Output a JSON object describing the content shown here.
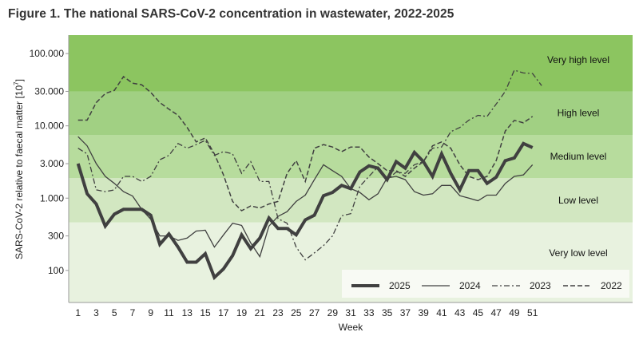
{
  "title": "Figure 1. The national SARS-CoV-2 concentration in wastewater, 2022-2025",
  "chart_data": {
    "type": "line",
    "title": "Figure 1. The national SARS-CoV-2 concentration in wastewater, 2022-2025",
    "xlabel": "Week",
    "ylabel": "SARS-CoV-2 relative to faecal matter  [10",
    "ylabel_sup": "7",
    "ylabel_end": "]",
    "yscale": "log",
    "ylim": [
      36,
      180000
    ],
    "xlim": [
      0,
      63
    ],
    "yticks": [
      100000,
      30000,
      10000,
      3000,
      1000,
      300,
      100
    ],
    "ytick_labels": [
      "100.000",
      "30.000",
      "10.000",
      "3.000",
      "1.000",
      "300",
      "100"
    ],
    "xticks": [
      1,
      3,
      5,
      7,
      9,
      11,
      13,
      15,
      17,
      19,
      21,
      23,
      25,
      27,
      29,
      31,
      33,
      35,
      37,
      39,
      41,
      43,
      45,
      47,
      49,
      51
    ],
    "grid": false,
    "legend_position": "bottom-right",
    "levels": [
      {
        "label": "Very high level",
        "lower": 30000,
        "upper": 180000,
        "color": "#8cc560"
      },
      {
        "label": "High level",
        "lower": 7500,
        "upper": 30000,
        "color": "#a1d083"
      },
      {
        "label": "Medium level",
        "lower": 1900,
        "upper": 7500,
        "color": "#b7dc9d"
      },
      {
        "label": "Low level",
        "lower": 460,
        "upper": 1900,
        "color": "#d2e7c1"
      },
      {
        "label": "Very low level",
        "lower": 36,
        "upper": 460,
        "color": "#e8f2df"
      }
    ],
    "series": [
      {
        "name": "2025",
        "style": "thick",
        "start_week": 1,
        "values": [
          3000,
          1150,
          830,
          410,
          600,
          700,
          700,
          700,
          580,
          230,
          320,
          210,
          130,
          130,
          170,
          80,
          105,
          160,
          310,
          200,
          280,
          530,
          380,
          380,
          310,
          500,
          580,
          1080,
          1200,
          1500,
          1350,
          2300,
          2800,
          2600,
          1800,
          3200,
          2600,
          4300,
          3200,
          2000,
          4100,
          2200,
          1300,
          2400,
          2400,
          1600,
          1950,
          3300,
          3600,
          5700,
          5000
        ]
      },
      {
        "name": "2024",
        "style": "solid",
        "start_week": 1,
        "values": [
          7100,
          5300,
          3000,
          2000,
          1600,
          1230,
          1070,
          700,
          510,
          300,
          300,
          260,
          280,
          350,
          360,
          210,
          310,
          450,
          420,
          240,
          155,
          410,
          560,
          650,
          900,
          1100,
          1800,
          2900,
          2400,
          2000,
          1350,
          1200,
          950,
          1150,
          1900,
          2000,
          1800,
          1230,
          1100,
          1150,
          1500,
          1500,
          1080,
          1000,
          920,
          1100,
          1100,
          1600,
          2000,
          2100,
          2900
        ]
      },
      {
        "name": "2023",
        "style": "dashdot",
        "start_week": 1,
        "values": [
          4900,
          4100,
          1300,
          1230,
          1300,
          2000,
          2000,
          1700,
          2000,
          3400,
          3900,
          5700,
          4900,
          5500,
          6300,
          3900,
          4400,
          4100,
          2200,
          3200,
          1700,
          1700,
          520,
          450,
          210,
          140,
          175,
          220,
          300,
          570,
          610,
          1450,
          2000,
          2700,
          1800,
          2300,
          2200,
          2900,
          3200,
          4900,
          5100,
          8300,
          9500,
          12000,
          14000,
          13500,
          20000,
          30000,
          59000,
          54000,
          53000,
          36000
        ]
      },
      {
        "name": "2022",
        "style": "dashed",
        "start_week": 1,
        "values": [
          12000,
          12000,
          21000,
          28000,
          31000,
          48000,
          39000,
          37000,
          29000,
          21000,
          17000,
          14000,
          9500,
          6000,
          6800,
          4100,
          2100,
          900,
          670,
          780,
          730,
          830,
          900,
          2200,
          3300,
          1700,
          4900,
          5500,
          5100,
          4400,
          5100,
          5100,
          3700,
          3000,
          2400,
          2400,
          2000,
          2600,
          3200,
          5300,
          6000,
          4900,
          2900,
          2000,
          1800,
          2000,
          3300,
          8500,
          11900,
          11000,
          13500
        ]
      }
    ],
    "line_color": "#404040"
  }
}
